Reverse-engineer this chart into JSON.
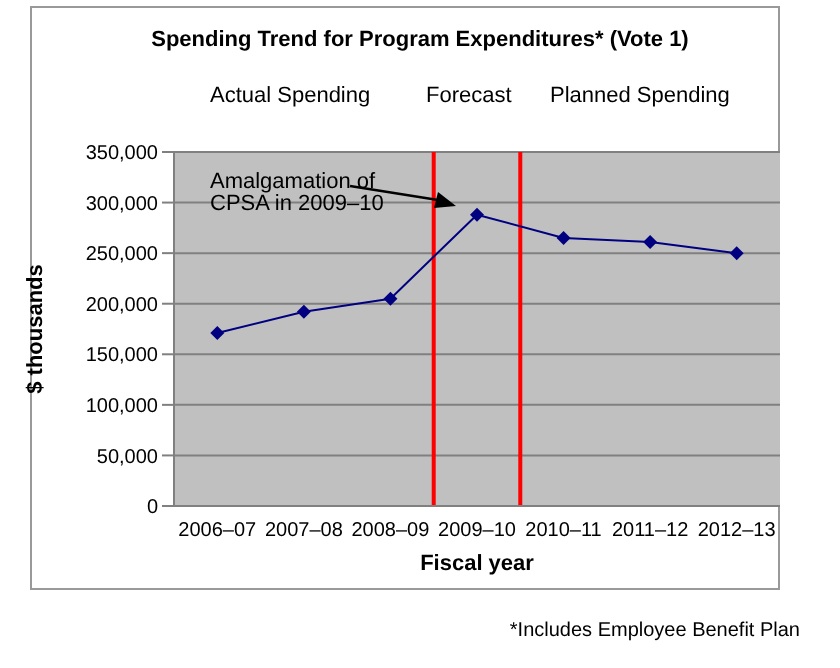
{
  "chart_data": {
    "type": "line",
    "title": "Spending Trend for Program Expenditures* (Vote 1)",
    "xlabel": "Fiscal year",
    "ylabel": "$ thousands",
    "categories": [
      "2006–07",
      "2007–08",
      "2008–09",
      "2009–10",
      "2010–11",
      "2011–12",
      "2012–13"
    ],
    "series": [
      {
        "color": "#000080",
        "values": [
          171000,
          192000,
          205000,
          288000,
          265000,
          261000,
          250000
        ]
      }
    ],
    "ylim": [
      0,
      350000
    ],
    "yticks": [
      0,
      {
        "value": 50000,
        "label": "50,000"
      },
      {
        "value": 100000,
        "label": "100,000"
      },
      {
        "value": 150000,
        "label": "150,000"
      },
      {
        "value": 200000,
        "label": "200,000"
      },
      {
        "value": 250000,
        "label": "250,000"
      },
      {
        "value": 300000,
        "label": "300,000"
      },
      {
        "value": 350000,
        "label": "350,000"
      }
    ],
    "grid": "y",
    "marker": "diamond",
    "line_style": "solid",
    "legend": false,
    "annotations": [
      "Actual Spending",
      "Forecast",
      "Planned Spending",
      "Amalgamation of CPSA in 2009–10",
      "*Includes Employee Benefit Plan"
    ]
  }
}
